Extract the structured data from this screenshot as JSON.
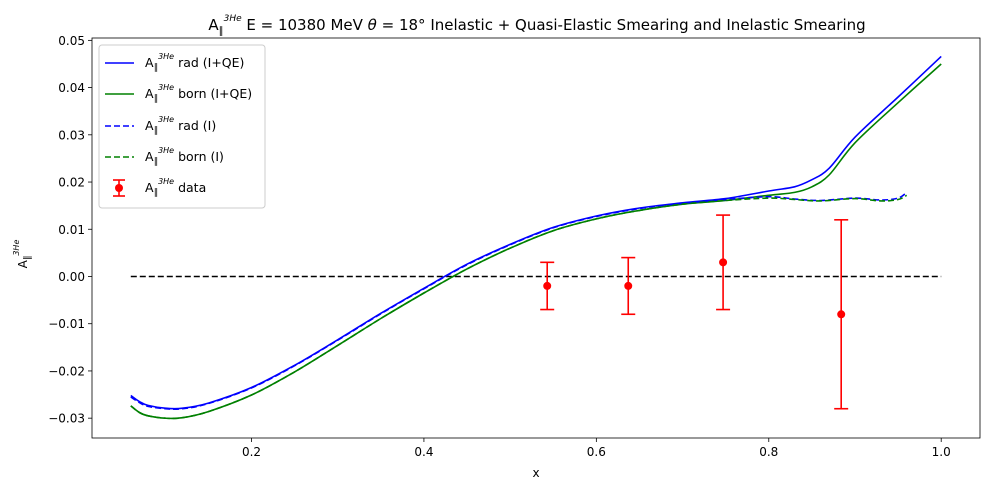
{
  "chart_data": {
    "type": "line",
    "title_parts": {
      "main": "A",
      "sub": "∥",
      "sup": "3He",
      "rest_a": " E = 10380 MeV ",
      "theta": "θ",
      "rest_b": " = 18° Inelastic + Quasi-Elastic Smearing and Inelastic Smearing"
    },
    "xlabel": "x",
    "ylabel_parts": {
      "main": "A",
      "sub": "∥",
      "sup": "3He"
    },
    "xlim": [
      0.015,
      1.045
    ],
    "ylim": [
      -0.0342,
      0.0505
    ],
    "xticks": [
      0.2,
      0.4,
      0.6,
      0.8,
      1.0
    ],
    "xtick_labels": [
      "0.2",
      "0.4",
      "0.6",
      "0.8",
      "1.0"
    ],
    "yticks": [
      -0.03,
      -0.02,
      -0.01,
      0.0,
      0.01,
      0.02,
      0.03,
      0.04,
      0.05
    ],
    "ytick_labels": [
      "−0.03",
      "−0.02",
      "−0.01",
      "0.00",
      "0.01",
      "0.02",
      "0.03",
      "0.04",
      "0.05"
    ],
    "grid": false,
    "legend_position": "upper-left",
    "series": [
      {
        "name": "rad (I+QE)",
        "color": "#0000ff",
        "style": "solid",
        "x": [
          0.06,
          0.07,
          0.08,
          0.1,
          0.12,
          0.15,
          0.2,
          0.25,
          0.3,
          0.35,
          0.4,
          0.45,
          0.5,
          0.55,
          0.6,
          0.65,
          0.7,
          0.75,
          0.8,
          0.83,
          0.85,
          0.87,
          0.9,
          0.95,
          1.0
        ],
        "y": [
          -0.0252,
          -0.0265,
          -0.0273,
          -0.0279,
          -0.0279,
          -0.0268,
          -0.0235,
          -0.0188,
          -0.0134,
          -0.0078,
          -0.0025,
          0.0026,
          0.0068,
          0.0104,
          0.0128,
          0.0145,
          0.0156,
          0.0165,
          0.0181,
          0.019,
          0.0205,
          0.0229,
          0.0295,
          0.038,
          0.0466
        ]
      },
      {
        "name": "born (I+QE)",
        "color": "#008000",
        "style": "solid",
        "x": [
          0.06,
          0.07,
          0.08,
          0.1,
          0.12,
          0.15,
          0.2,
          0.25,
          0.3,
          0.35,
          0.4,
          0.45,
          0.5,
          0.55,
          0.6,
          0.65,
          0.7,
          0.75,
          0.8,
          0.83,
          0.85,
          0.87,
          0.9,
          0.95,
          1.0
        ],
        "y": [
          -0.0274,
          -0.0288,
          -0.0295,
          -0.03,
          -0.0299,
          -0.0286,
          -0.0251,
          -0.0202,
          -0.0146,
          -0.0089,
          -0.0035,
          0.0016,
          0.006,
          0.0097,
          0.0122,
          0.014,
          0.0153,
          0.0161,
          0.0172,
          0.0178,
          0.019,
          0.0215,
          0.0283,
          0.0368,
          0.045
        ]
      },
      {
        "name": "rad (I)",
        "color": "#0000ff",
        "style": "dashed",
        "x": [
          0.06,
          0.07,
          0.08,
          0.1,
          0.12,
          0.15,
          0.2,
          0.25,
          0.3,
          0.35,
          0.4,
          0.45,
          0.5,
          0.55,
          0.6,
          0.65,
          0.7,
          0.75,
          0.8,
          0.83,
          0.86,
          0.9,
          0.93,
          0.95,
          0.96
        ],
        "y": [
          -0.0255,
          -0.0267,
          -0.0275,
          -0.028,
          -0.028,
          -0.0269,
          -0.0236,
          -0.0189,
          -0.0135,
          -0.0079,
          -0.0026,
          0.0025,
          0.0067,
          0.0103,
          0.0127,
          0.0144,
          0.0155,
          0.0163,
          0.0169,
          0.0164,
          0.0161,
          0.0166,
          0.0162,
          0.0166,
          0.0178
        ]
      },
      {
        "name": "born (I)",
        "color": "#008000",
        "style": "dashed",
        "x": [
          0.06,
          0.07,
          0.08,
          0.1,
          0.12,
          0.15,
          0.2,
          0.25,
          0.3,
          0.35,
          0.4,
          0.45,
          0.5,
          0.55,
          0.6,
          0.65,
          0.7,
          0.75,
          0.8,
          0.83,
          0.86,
          0.9,
          0.93,
          0.95,
          0.96
        ],
        "y": [
          -0.0274,
          -0.0288,
          -0.0295,
          -0.03,
          -0.0299,
          -0.0286,
          -0.0251,
          -0.0202,
          -0.0146,
          -0.0089,
          -0.0035,
          0.0016,
          0.006,
          0.0097,
          0.0122,
          0.014,
          0.0153,
          0.0161,
          0.0166,
          0.0163,
          0.016,
          0.0165,
          0.016,
          0.0163,
          0.0172
        ]
      },
      {
        "name": "data",
        "type": "errorbar",
        "color": "#ff0000",
        "x": [
          0.543,
          0.637,
          0.747,
          0.884
        ],
        "y": [
          -0.002,
          -0.002,
          0.003,
          -0.008
        ],
        "yerr": [
          0.005,
          0.006,
          0.01,
          0.02
        ]
      }
    ],
    "reference_line": {
      "y": 0.0,
      "x_range": [
        0.06,
        1.0
      ],
      "color": "#000000",
      "style": "dashed"
    }
  }
}
